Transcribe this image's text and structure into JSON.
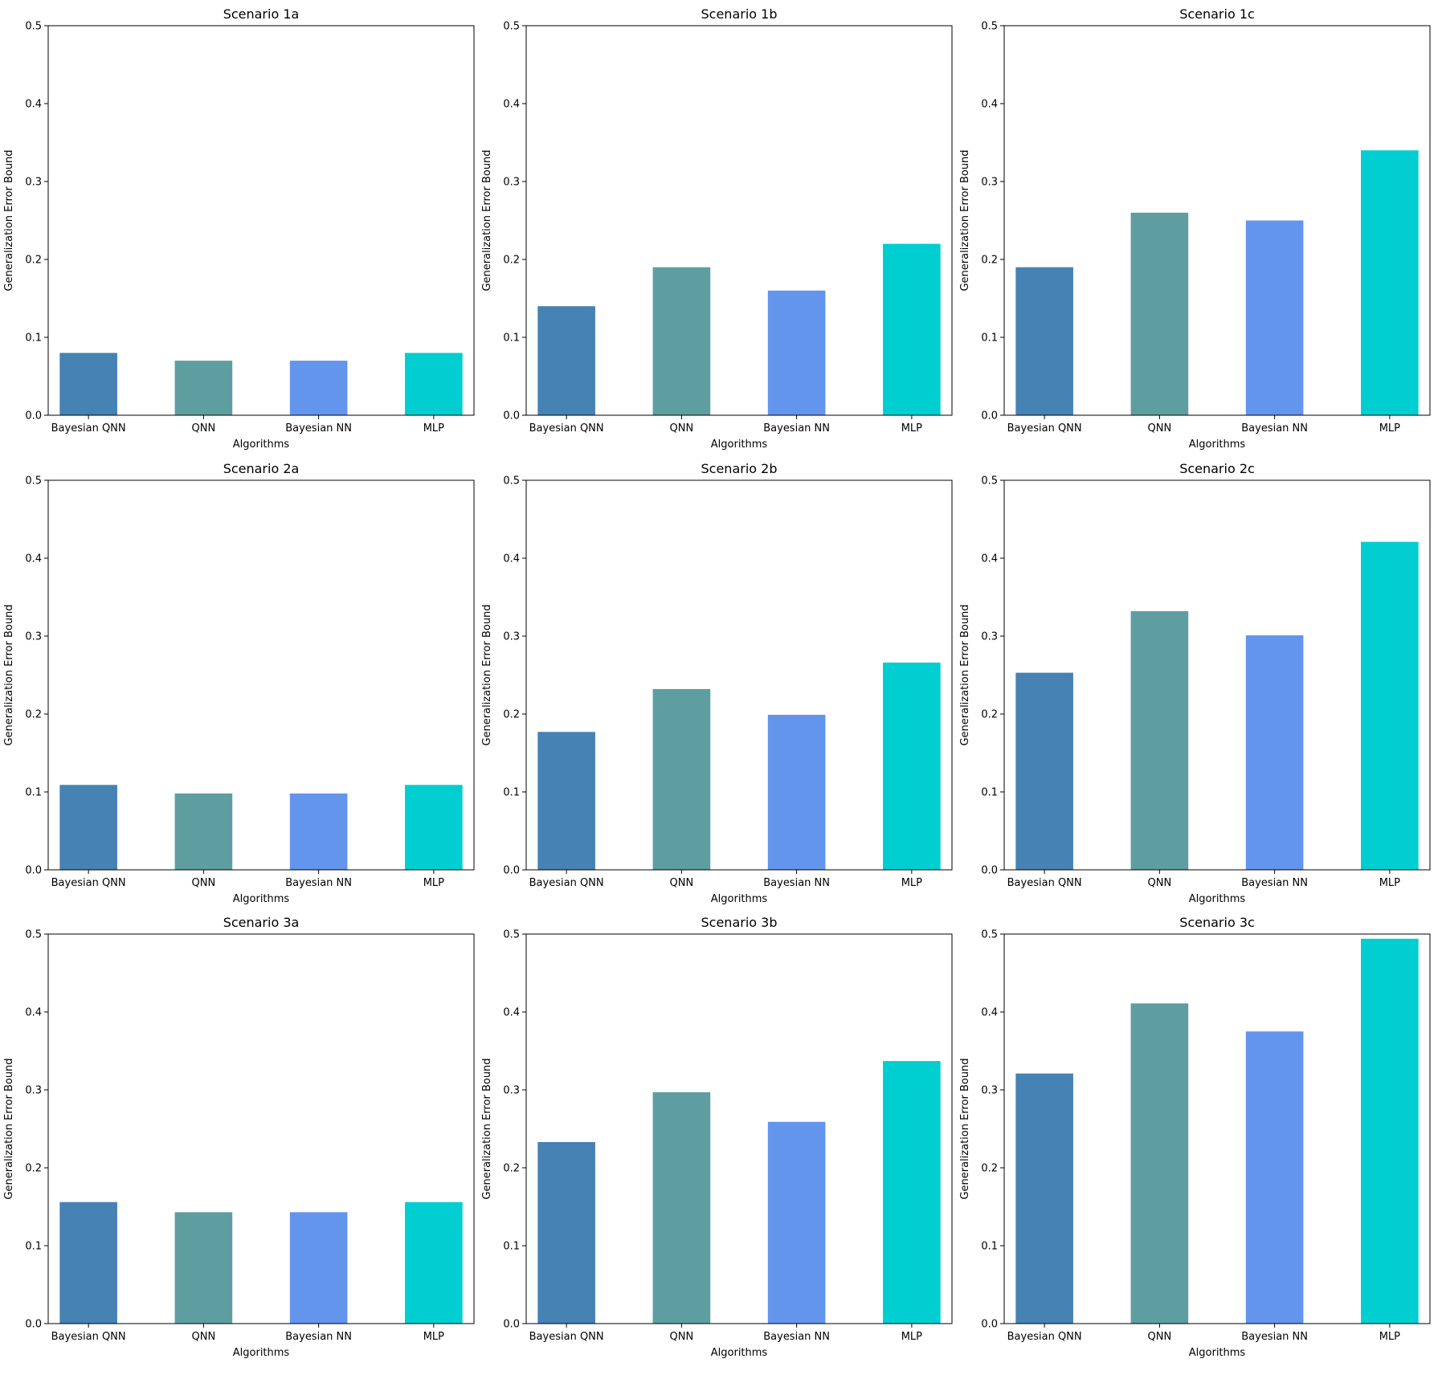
{
  "chart_data": [
    {
      "type": "bar",
      "title": "Scenario 1a",
      "xlabel": "Algorithms",
      "ylabel": "Generalization Error Bound",
      "categories": [
        "Bayesian QNN",
        "QNN",
        "Bayesian NN",
        "MLP"
      ],
      "values": [
        0.08,
        0.07,
        0.07,
        0.08
      ],
      "ylim": [
        0,
        0.5
      ],
      "yticks": [
        "0.0",
        "0.1",
        "0.2",
        "0.3",
        "0.4",
        "0.5"
      ],
      "grid": false
    },
    {
      "type": "bar",
      "title": "Scenario 1b",
      "xlabel": "Algorithms",
      "ylabel": "Generalization Error Bound",
      "categories": [
        "Bayesian QNN",
        "QNN",
        "Bayesian NN",
        "MLP"
      ],
      "values": [
        0.14,
        0.19,
        0.16,
        0.22
      ],
      "ylim": [
        0,
        0.5
      ],
      "yticks": [
        "0.0",
        "0.1",
        "0.2",
        "0.3",
        "0.4",
        "0.5"
      ],
      "grid": false
    },
    {
      "type": "bar",
      "title": "Scenario 1c",
      "xlabel": "Algorithms",
      "ylabel": "Generalization Error Bound",
      "categories": [
        "Bayesian QNN",
        "QNN",
        "Bayesian NN",
        "MLP"
      ],
      "values": [
        0.19,
        0.26,
        0.25,
        0.34
      ],
      "ylim": [
        0,
        0.5
      ],
      "yticks": [
        "0.0",
        "0.1",
        "0.2",
        "0.3",
        "0.4",
        "0.5"
      ],
      "grid": false
    },
    {
      "type": "bar",
      "title": "Scenario 2a",
      "xlabel": "Algorithms",
      "ylabel": "Generalization Error Bound",
      "categories": [
        "Bayesian QNN",
        "QNN",
        "Bayesian NN",
        "MLP"
      ],
      "values": [
        0.109,
        0.098,
        0.098,
        0.109
      ],
      "ylim": [
        0,
        0.5
      ],
      "yticks": [
        "0.0",
        "0.1",
        "0.2",
        "0.3",
        "0.4",
        "0.5"
      ],
      "grid": false
    },
    {
      "type": "bar",
      "title": "Scenario 2b",
      "xlabel": "Algorithms",
      "ylabel": "Generalization Error Bound",
      "categories": [
        "Bayesian QNN",
        "QNN",
        "Bayesian NN",
        "MLP"
      ],
      "values": [
        0.177,
        0.232,
        0.199,
        0.266
      ],
      "ylim": [
        0,
        0.5
      ],
      "yticks": [
        "0.0",
        "0.1",
        "0.2",
        "0.3",
        "0.4",
        "0.5"
      ],
      "grid": false
    },
    {
      "type": "bar",
      "title": "Scenario 2c",
      "xlabel": "Algorithms",
      "ylabel": "Generalization Error Bound",
      "categories": [
        "Bayesian QNN",
        "QNN",
        "Bayesian NN",
        "MLP"
      ],
      "values": [
        0.253,
        0.332,
        0.301,
        0.421
      ],
      "ylim": [
        0,
        0.5
      ],
      "yticks": [
        "0.0",
        "0.1",
        "0.2",
        "0.3",
        "0.4",
        "0.5"
      ],
      "grid": false
    },
    {
      "type": "bar",
      "title": "Scenario 3a",
      "xlabel": "Algorithms",
      "ylabel": "Generalization Error Bound",
      "categories": [
        "Bayesian QNN",
        "QNN",
        "Bayesian NN",
        "MLP"
      ],
      "values": [
        0.156,
        0.143,
        0.143,
        0.156
      ],
      "ylim": [
        0,
        0.5
      ],
      "yticks": [
        "0.0",
        "0.1",
        "0.2",
        "0.3",
        "0.4",
        "0.5"
      ],
      "grid": false
    },
    {
      "type": "bar",
      "title": "Scenario 3b",
      "xlabel": "Algorithms",
      "ylabel": "Generalization Error Bound",
      "categories": [
        "Bayesian QNN",
        "QNN",
        "Bayesian NN",
        "MLP"
      ],
      "values": [
        0.233,
        0.297,
        0.259,
        0.337
      ],
      "ylim": [
        0,
        0.5
      ],
      "yticks": [
        "0.0",
        "0.1",
        "0.2",
        "0.3",
        "0.4",
        "0.5"
      ],
      "grid": false
    },
    {
      "type": "bar",
      "title": "Scenario 3c",
      "xlabel": "Algorithms",
      "ylabel": "Generalization Error Bound",
      "categories": [
        "Bayesian QNN",
        "QNN",
        "Bayesian NN",
        "MLP"
      ],
      "values": [
        0.321,
        0.411,
        0.375,
        0.494
      ],
      "ylim": [
        0,
        0.5
      ],
      "yticks": [
        "0.0",
        "0.1",
        "0.2",
        "0.3",
        "0.4",
        "0.5"
      ],
      "grid": false
    }
  ],
  "colors": {
    "series": [
      "#4682b4",
      "#5f9ea0",
      "#6495ed",
      "#00ced1"
    ],
    "frame": "#000000",
    "background": "#ffffff"
  }
}
